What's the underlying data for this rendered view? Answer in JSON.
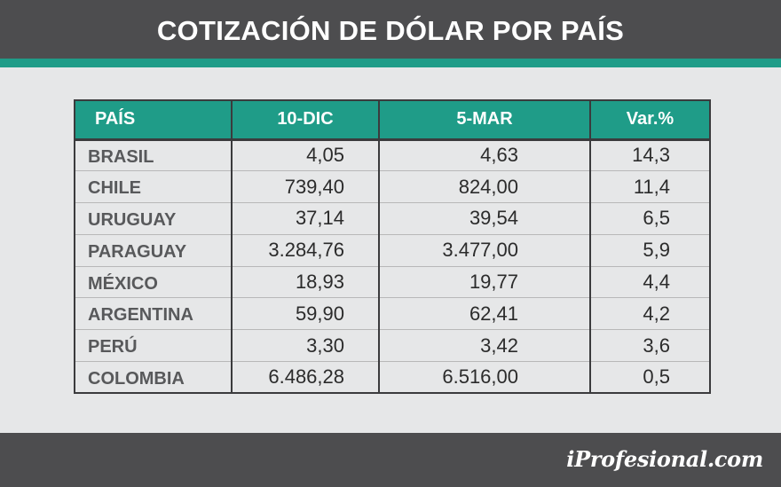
{
  "header": {
    "title": "COTIZACIÓN DE DÓLAR POR PAÍS"
  },
  "chart_data": {
    "type": "table",
    "title": "COTIZACIÓN DE DÓLAR POR PAÍS",
    "columns": [
      "PAÍS",
      "10-DIC",
      "5-MAR",
      "Var.%"
    ],
    "rows": [
      [
        "BRASIL",
        "4,05",
        "4,63",
        "14,3"
      ],
      [
        "CHILE",
        "739,40",
        "824,00",
        "11,4"
      ],
      [
        "URUGUAY",
        "37,14",
        "39,54",
        "6,5"
      ],
      [
        "PARAGUAY",
        "3.284,76",
        "3.477,00",
        "5,9"
      ],
      [
        "MÉXICO",
        "18,93",
        "19,77",
        "4,4"
      ],
      [
        "ARGENTINA",
        "59,90",
        "62,41",
        "4,2"
      ],
      [
        "PERÚ",
        "3,30",
        "3,42",
        "3,6"
      ],
      [
        "COLOMBIA",
        "6.486,28",
        "6.516,00",
        "0,5"
      ]
    ]
  },
  "footer": {
    "brand": "iProfesional.com"
  },
  "colors": {
    "header_bg": "#4d4d4f",
    "accent": "#1f9c88",
    "body_bg": "#e6e7e8"
  }
}
